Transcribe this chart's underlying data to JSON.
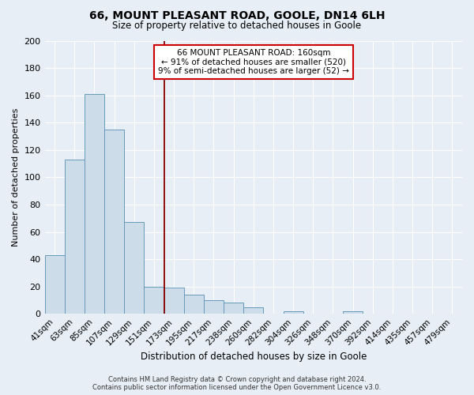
{
  "title": "66, MOUNT PLEASANT ROAD, GOOLE, DN14 6LH",
  "subtitle": "Size of property relative to detached houses in Goole",
  "xlabel": "Distribution of detached houses by size in Goole",
  "ylabel": "Number of detached properties",
  "footer_line1": "Contains HM Land Registry data © Crown copyright and database right 2024.",
  "footer_line2": "Contains public sector information licensed under the Open Government Licence v3.0.",
  "bar_labels": [
    "41sqm",
    "63sqm",
    "85sqm",
    "107sqm",
    "129sqm",
    "151sqm",
    "173sqm",
    "195sqm",
    "217sqm",
    "238sqm",
    "260sqm",
    "282sqm",
    "304sqm",
    "326sqm",
    "348sqm",
    "370sqm",
    "392sqm",
    "414sqm",
    "435sqm",
    "457sqm",
    "479sqm"
  ],
  "bar_values": [
    43,
    113,
    161,
    135,
    67,
    20,
    19,
    14,
    10,
    8,
    5,
    0,
    2,
    0,
    0,
    2,
    0,
    0,
    0,
    0,
    0
  ],
  "bar_color": "#ccdce8",
  "bar_edge_color": "#6699bb",
  "ylim": [
    0,
    200
  ],
  "yticks": [
    0,
    20,
    40,
    60,
    80,
    100,
    120,
    140,
    160,
    180,
    200
  ],
  "annotation_title": "66 MOUNT PLEASANT ROAD: 160sqm",
  "annotation_line1": "← 91% of detached houses are smaller (520)",
  "annotation_line2": "9% of semi-detached houses are larger (52) →",
  "annotation_box_edge": "#cc0000",
  "marker_line_color": "#880000",
  "background_color": "#e8eef5",
  "plot_bg_color": "#e8eef5",
  "grid_color": "#ffffff"
}
